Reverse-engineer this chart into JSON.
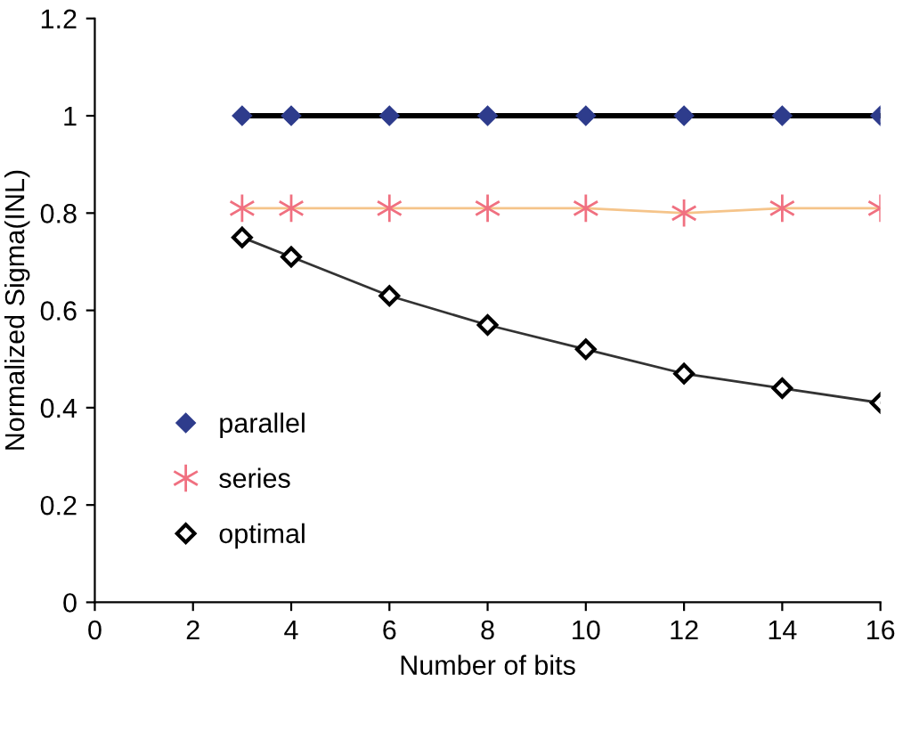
{
  "chart_data": {
    "type": "line",
    "xlabel": "Number of bits",
    "ylabel": "Normalized Sigma(INL)",
    "xlim": [
      0,
      16
    ],
    "xticks": [
      0,
      2,
      4,
      6,
      8,
      10,
      12,
      14,
      16
    ],
    "ylim": [
      0,
      1.2
    ],
    "yticks": [
      0,
      0.2,
      0.4,
      0.6,
      0.8,
      1,
      1.2
    ],
    "series": [
      {
        "color": "#000000",
        "x": [
          3,
          4,
          6,
          8,
          10,
          12,
          14,
          16
        ],
        "values": [
          1,
          1,
          1,
          1,
          1,
          1,
          1,
          1
        ],
        "marker": "none"
      },
      {
        "color": "#f5c48a",
        "x": [
          3,
          4,
          6,
          8,
          10,
          12,
          14,
          16
        ],
        "values": [
          0.81,
          0.81,
          0.81,
          0.81,
          0.81,
          0.8,
          0.81,
          0.81
        ],
        "marker": "none"
      },
      {
        "color": "#333333",
        "x": [
          3,
          4,
          6,
          8,
          10,
          12,
          14,
          16
        ],
        "values": [
          0.75,
          0.71,
          0.63,
          0.57,
          0.52,
          0.47,
          0.44,
          0.41
        ],
        "marker": "none"
      },
      {
        "type": "scatter",
        "name": "parallel",
        "color": "#2e3c8c",
        "x": [
          3,
          4,
          6,
          8,
          10,
          12,
          14,
          16
        ],
        "values": [
          1,
          1,
          1,
          1,
          1,
          1,
          1,
          1
        ],
        "marker": "diamond"
      },
      {
        "type": "scatter",
        "name": "series",
        "color": "#f07080",
        "x": [
          3,
          4,
          6,
          8,
          10,
          12,
          14,
          16
        ],
        "values": [
          0.81,
          0.81,
          0.81,
          0.81,
          0.81,
          0.8,
          0.81,
          0.81
        ],
        "marker": "cross"
      },
      {
        "type": "scatter",
        "name": "optimal",
        "color": "#000000",
        "x": [
          3,
          4,
          6,
          8,
          10,
          12,
          14,
          16
        ],
        "values": [
          0.75,
          0.71,
          0.63,
          0.57,
          0.52,
          0.47,
          0.44,
          0.41
        ],
        "marker": "diamond"
      }
    ],
    "legend": "bottom left",
    "grid": false
  }
}
